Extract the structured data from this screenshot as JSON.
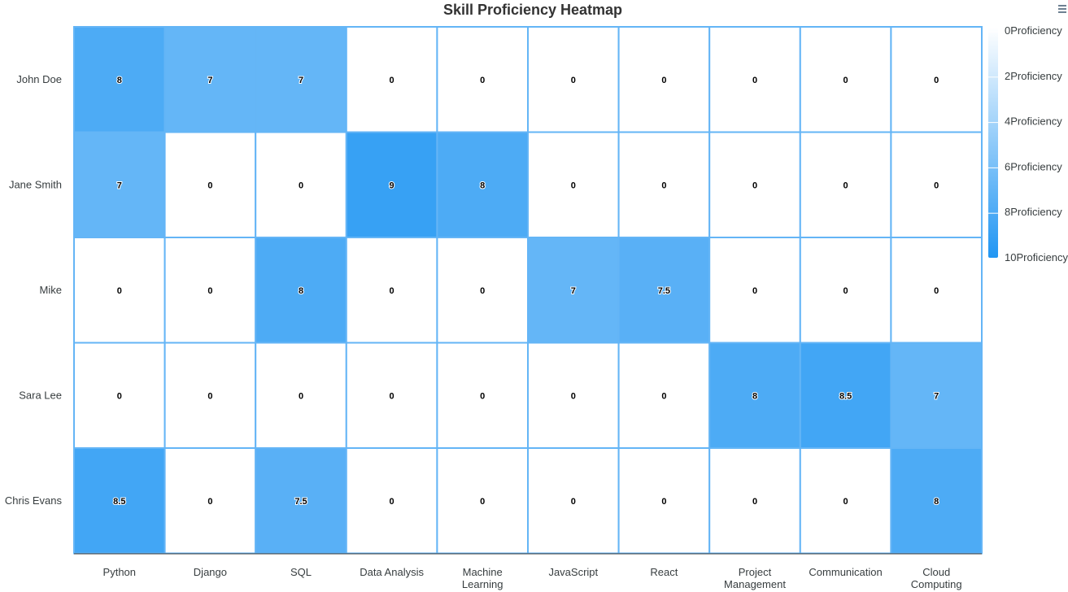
{
  "chart_data": {
    "type": "heatmap",
    "title": "Skill Proficiency Heatmap",
    "rows": [
      "John Doe",
      "Jane Smith",
      "Mike",
      "Sara Lee",
      "Chris Evans"
    ],
    "columns": [
      "Python",
      "Django",
      "SQL",
      "Data Analysis",
      "Machine Learning",
      "JavaScript",
      "React",
      "Project Management",
      "Communication",
      "Cloud Computing"
    ],
    "values": [
      [
        8,
        7,
        7,
        0,
        0,
        0,
        0,
        0,
        0,
        0
      ],
      [
        7,
        0,
        0,
        9,
        8,
        0,
        0,
        0,
        0,
        0
      ],
      [
        0,
        0,
        8,
        0,
        0,
        7,
        7.5,
        0,
        0,
        0
      ],
      [
        0,
        0,
        0,
        0,
        0,
        0,
        0,
        8,
        8.5,
        7
      ],
      [
        8.5,
        0,
        7.5,
        0,
        0,
        0,
        0,
        0,
        0,
        8
      ]
    ],
    "color_range": [
      0,
      10
    ],
    "legend": {
      "position": "right",
      "labels": [
        "0Proficiency",
        "2Proficiency",
        "4Proficiency",
        "6Proficiency",
        "8Proficiency",
        "10Proficiency"
      ]
    },
    "colors": {
      "low": "#ffffff",
      "high": "#2196f3",
      "grid": "#64b5f6"
    }
  }
}
